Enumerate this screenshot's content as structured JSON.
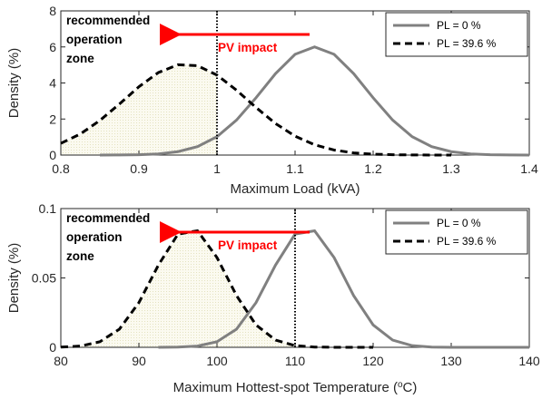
{
  "chart_data": [
    {
      "type": "line",
      "xlabel": "Maximum Load (kVA)",
      "ylabel": "Density (%)",
      "x": [
        0.8,
        0.825,
        0.85,
        0.875,
        0.9,
        0.925,
        0.95,
        0.975,
        1.0,
        1.025,
        1.05,
        1.075,
        1.1,
        1.125,
        1.15,
        1.175,
        1.2,
        1.225,
        1.25,
        1.275,
        1.3,
        1.325,
        1.35,
        1.375,
        1.4
      ],
      "series": [
        {
          "name": "PL = 0 %",
          "color": "#808080",
          "dash": false,
          "values": [
            null,
            null,
            0.001,
            0.005,
            0.02,
            0.065,
            0.19,
            0.47,
            1.02,
            1.94,
            3.18,
            4.52,
            5.59,
            6.0,
            5.59,
            4.52,
            3.18,
            1.94,
            1.02,
            0.47,
            0.19,
            0.065,
            0.02,
            0.005,
            0.001
          ]
        },
        {
          "name": "PL = 39.6 %",
          "color": "#000000",
          "dash": true,
          "values": [
            0.65,
            1.17,
            1.92,
            2.83,
            3.79,
            4.58,
            5.01,
            4.96,
            4.44,
            3.6,
            2.64,
            1.75,
            1.05,
            0.57,
            0.28,
            0.12,
            0.05,
            0.02,
            0.006,
            0.002,
            0.001,
            null,
            null,
            null,
            null
          ]
        }
      ],
      "xlim": [
        0.8,
        1.4
      ],
      "xticks": [
        0.8,
        0.9,
        1,
        1.1,
        1.2,
        1.3,
        1.4
      ],
      "ylim": [
        0,
        8
      ],
      "yticks": [
        0,
        2,
        4,
        6,
        8
      ],
      "vline": 1,
      "legend": "upper right",
      "annotations": {
        "zone": [
          "recommended",
          "operation",
          "zone"
        ],
        "arrow": "PV impact",
        "arrow_color": "#ff0000"
      }
    },
    {
      "type": "line",
      "xlabel": [
        "Maximum Hottest-spot Temperature (",
        "o",
        "C)"
      ],
      "ylabel": "Density (%)",
      "x": [
        80,
        82.5,
        85,
        87.5,
        90,
        92.5,
        95,
        97.5,
        100,
        102.5,
        105,
        107.5,
        110,
        112.5,
        115,
        117.5,
        120,
        122.5,
        125,
        127.5,
        130,
        132.5,
        135,
        137.5,
        140
      ],
      "series": [
        {
          "name": "PL = 0 %",
          "color": "#808080",
          "dash": false,
          "values": [
            null,
            null,
            null,
            null,
            null,
            0,
            0.00015,
            0.0009,
            0.004,
            0.0131,
            0.0322,
            0.0593,
            0.0816,
            0.084,
            0.0647,
            0.0373,
            0.0161,
            0.0052,
            0.0012,
            0.0002,
            0,
            0,
            0,
            0,
            0
          ]
        },
        {
          "name": "PL = 39.6 %",
          "color": "#000000",
          "dash": true,
          "values": [
            0.00015,
            0.0009,
            0.004,
            0.0131,
            0.0322,
            0.0593,
            0.0816,
            0.084,
            0.0647,
            0.0373,
            0.0161,
            0.0052,
            0.0012,
            0.0002,
            0,
            0,
            0,
            null,
            null,
            null,
            null,
            null,
            null,
            null,
            null
          ]
        }
      ],
      "xlim": [
        80,
        140
      ],
      "xticks": [
        80,
        90,
        100,
        110,
        120,
        130,
        140
      ],
      "ylim": [
        0,
        0.1
      ],
      "yticks": [
        0,
        0.05,
        0.1
      ],
      "vline": 110,
      "legend": "upper right",
      "annotations": {
        "zone": [
          "recommended",
          "operation",
          "zone"
        ],
        "arrow": "PV impact",
        "arrow_color": "#ff0000"
      }
    }
  ]
}
